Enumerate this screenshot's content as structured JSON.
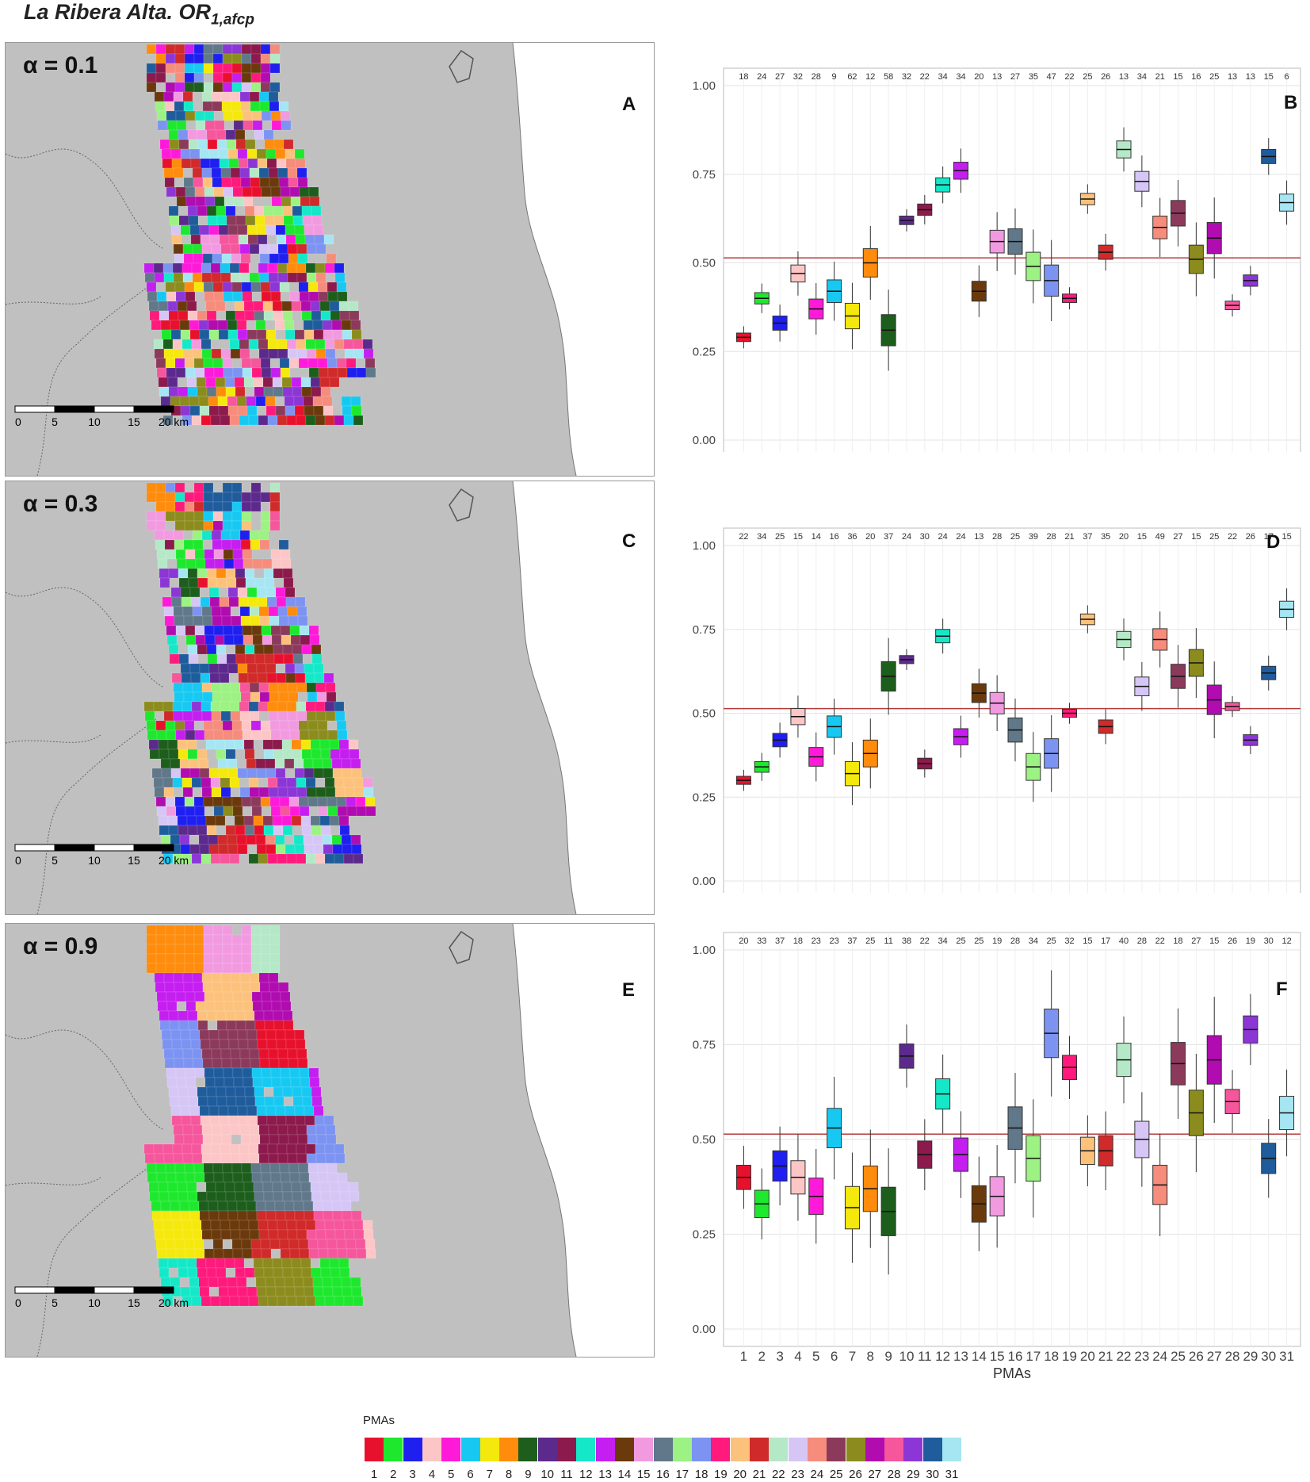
{
  "header": {
    "title": "La Ribera Alta. OR",
    "title_sub": "1,afcp"
  },
  "panels": [
    {
      "alpha": "α = 0.1",
      "map_letter": "A",
      "chart_letter": "B"
    },
    {
      "alpha": "α = 0.3",
      "map_letter": "C",
      "chart_letter": "D"
    },
    {
      "alpha": "α = 0.9",
      "map_letter": "E",
      "chart_letter": "F"
    }
  ],
  "scalebar": {
    "ticks": [
      "0",
      "5",
      "10",
      "15",
      "20 km"
    ]
  },
  "legend": {
    "title": "PMAs",
    "labels": [
      "1",
      "2",
      "3",
      "4",
      "5",
      "6",
      "7",
      "8",
      "9",
      "10",
      "11",
      "12",
      "13",
      "14",
      "15",
      "16",
      "17",
      "18",
      "19",
      "20",
      "21",
      "22",
      "23",
      "24",
      "25",
      "26",
      "27",
      "28",
      "29",
      "30",
      "31"
    ],
    "colors": [
      "#e8112d",
      "#1ee82e",
      "#1f1ff0",
      "#fcc6c6",
      "#ff1ad9",
      "#17c9f2",
      "#f5e80c",
      "#ff8c0c",
      "#1d5e1d",
      "#5c2a8c",
      "#8c1a4c",
      "#15e8c8",
      "#c51ef0",
      "#6b3a0c",
      "#f29ae0",
      "#60788a",
      "#9cf283",
      "#7c93f2",
      "#ff1a7c",
      "#fcc27c",
      "#d02a2a",
      "#b4e8c6",
      "#d6c6f6",
      "#f58c7c",
      "#8c3a5c",
      "#8c8c1e",
      "#b00cb0",
      "#f5569c",
      "#8c36d6",
      "#1f5c9c",
      "#a6e6f2"
    ]
  },
  "chart_data": [
    {
      "type": "box",
      "ylim": [
        0,
        1
      ],
      "yticks": [
        "0.00",
        "0.25",
        "0.50",
        "0.75",
        "1.00"
      ],
      "reference_line": 0.514,
      "ns": [
        18,
        24,
        27,
        32,
        28,
        9,
        62,
        12,
        58,
        32,
        22,
        34,
        34,
        20,
        13,
        27,
        35,
        47,
        22,
        25,
        26,
        13,
        34,
        21,
        15,
        16,
        25,
        13,
        13,
        15,
        6
      ],
      "order": [
        1,
        2,
        3,
        4,
        5,
        6,
        7,
        8,
        9,
        10,
        11,
        12,
        13,
        14,
        15,
        16,
        17,
        18,
        19,
        20,
        21,
        22,
        23,
        24,
        25,
        26,
        27,
        28,
        29,
        30,
        31
      ],
      "medians": [
        0.29,
        0.4,
        0.33,
        0.47,
        0.37,
        0.42,
        0.35,
        0.5,
        0.31,
        0.62,
        0.65,
        0.72,
        0.76,
        0.42,
        0.56,
        0.56,
        0.49,
        0.45,
        0.4,
        0.68,
        0.53,
        0.82,
        0.73,
        0.6,
        0.64,
        0.51,
        0.57,
        0.38,
        0.45,
        0.8,
        0.67
      ],
      "xlabel": ""
    },
    {
      "type": "box",
      "ylim": [
        0,
        1
      ],
      "yticks": [
        "0.00",
        "0.25",
        "0.50",
        "0.75",
        "1.00"
      ],
      "reference_line": 0.514,
      "ns": [
        22,
        34,
        25,
        15,
        14,
        16,
        36,
        20,
        37,
        24,
        30,
        24,
        24,
        13,
        28,
        25,
        39,
        28,
        21,
        37,
        35,
        20,
        15,
        49,
        27,
        15,
        25,
        22,
        26,
        17,
        15
      ],
      "order": [
        1,
        2,
        3,
        4,
        5,
        6,
        7,
        8,
        9,
        10,
        11,
        12,
        13,
        14,
        15,
        16,
        17,
        18,
        19,
        20,
        21,
        22,
        23,
        24,
        25,
        26,
        27,
        28,
        29,
        30,
        31
      ],
      "medians": [
        0.3,
        0.34,
        0.42,
        0.49,
        0.37,
        0.46,
        0.32,
        0.38,
        0.61,
        0.66,
        0.35,
        0.73,
        0.43,
        0.56,
        0.53,
        0.45,
        0.34,
        0.38,
        0.5,
        0.78,
        0.46,
        0.72,
        0.58,
        0.72,
        0.61,
        0.65,
        0.54,
        0.52,
        0.42,
        0.62,
        0.81
      ],
      "xlabel": ""
    },
    {
      "type": "box",
      "ylim": [
        0,
        1
      ],
      "yticks": [
        "0.00",
        "0.25",
        "0.50",
        "0.75",
        "1.00"
      ],
      "reference_line": 0.514,
      "ns": [
        20,
        33,
        37,
        18,
        23,
        23,
        37,
        25,
        11,
        38,
        22,
        34,
        25,
        25,
        19,
        28,
        34,
        25,
        32,
        15,
        17,
        40,
        28,
        22,
        18,
        27,
        15,
        26,
        19,
        30,
        12
      ],
      "order": [
        1,
        2,
        3,
        4,
        5,
        6,
        7,
        8,
        9,
        10,
        11,
        12,
        13,
        14,
        15,
        16,
        17,
        18,
        19,
        20,
        21,
        22,
        23,
        24,
        25,
        26,
        27,
        28,
        29,
        30,
        31
      ],
      "medians": [
        0.4,
        0.33,
        0.43,
        0.4,
        0.35,
        0.53,
        0.32,
        0.37,
        0.31,
        0.72,
        0.46,
        0.62,
        0.46,
        0.33,
        0.35,
        0.53,
        0.45,
        0.78,
        0.69,
        0.47,
        0.47,
        0.71,
        0.5,
        0.38,
        0.7,
        0.57,
        0.71,
        0.6,
        0.79,
        0.45,
        0.57
      ],
      "xlabel": "PMAs"
    }
  ]
}
